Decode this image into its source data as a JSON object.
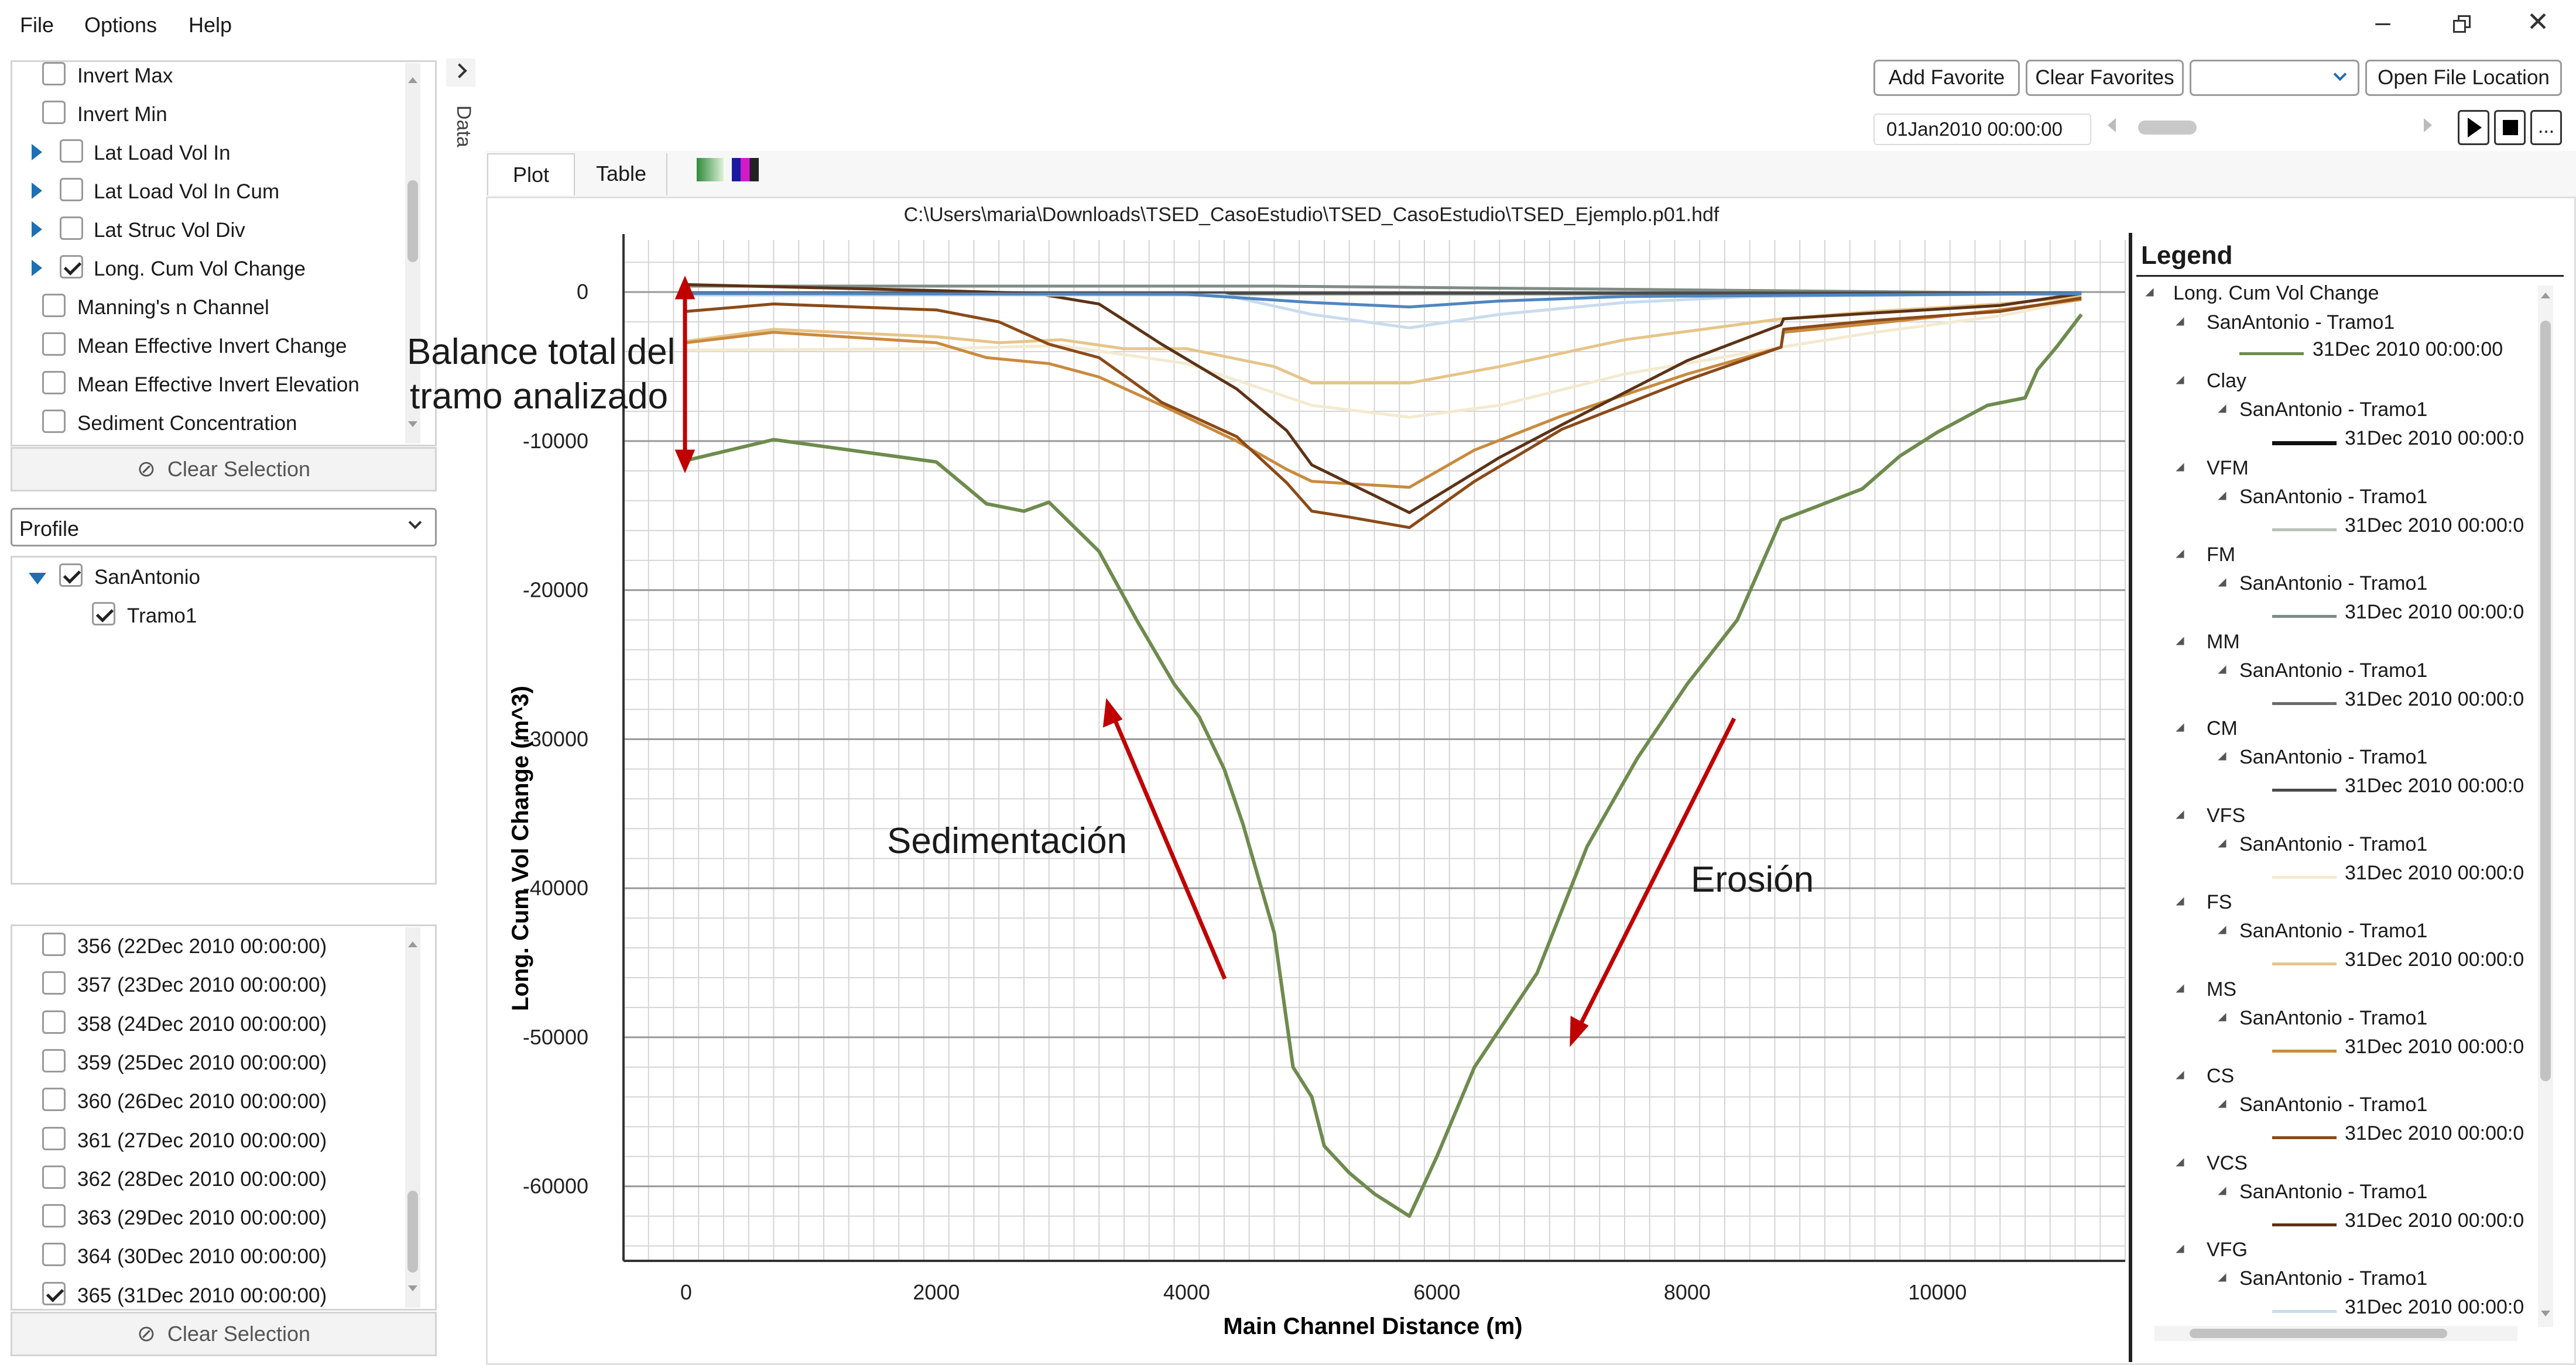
{
  "menu": {
    "file": "File",
    "options": "Options",
    "help": "Help"
  },
  "side_tab": "Data",
  "variables": [
    {
      "label": "Invert Max",
      "checked": false,
      "expander": false
    },
    {
      "label": "Invert Min",
      "checked": false,
      "expander": false
    },
    {
      "label": "Lat Load Vol In",
      "checked": false,
      "expander": true
    },
    {
      "label": "Lat Load Vol In Cum",
      "checked": false,
      "expander": true
    },
    {
      "label": "Lat Struc Vol Div",
      "checked": false,
      "expander": true
    },
    {
      "label": "Long. Cum Vol Change",
      "checked": true,
      "expander": true
    },
    {
      "label": "Manning's n Channel",
      "checked": false,
      "expander": false
    },
    {
      "label": "Mean Effective Invert Change",
      "checked": false,
      "expander": false
    },
    {
      "label": "Mean Effective Invert Elevation",
      "checked": false,
      "expander": false
    },
    {
      "label": "Sediment Concentration",
      "checked": false,
      "expander": false
    }
  ],
  "clear_selection": "Clear Selection",
  "profile_select": "Profile",
  "tree": {
    "river": "SanAntonio",
    "reach": "Tramo1"
  },
  "times": [
    {
      "label": "356 (22Dec 2010 00:00:00)",
      "checked": false
    },
    {
      "label": "357 (23Dec 2010 00:00:00)",
      "checked": false
    },
    {
      "label": "358 (24Dec 2010 00:00:00)",
      "checked": false
    },
    {
      "label": "359 (25Dec 2010 00:00:00)",
      "checked": false
    },
    {
      "label": "360 (26Dec 2010 00:00:00)",
      "checked": false
    },
    {
      "label": "361 (27Dec 2010 00:00:00)",
      "checked": false
    },
    {
      "label": "362 (28Dec 2010 00:00:00)",
      "checked": false
    },
    {
      "label": "363 (29Dec 2010 00:00:00)",
      "checked": false
    },
    {
      "label": "364 (30Dec 2010 00:00:00)",
      "checked": false
    },
    {
      "label": "365 (31Dec 2010 00:00:00)",
      "checked": true
    }
  ],
  "toolbar": {
    "add_favorite": "Add Favorite",
    "clear_favorites": "Clear Favorites",
    "open_file_location": "Open File Location",
    "time": "01Jan2010 00:00:00",
    "more": "..."
  },
  "tabs": {
    "plot": "Plot",
    "table": "Table"
  },
  "file_path": "C:\\Users\\maria\\Downloads\\TSED_CasoEstudio\\TSED_CasoEstudio\\TSED_Ejemplo.p01.hdf",
  "annotations": {
    "balance1": "Balance total del",
    "balance2": "tramo analizado",
    "sedimentacion": "Sedimentación",
    "erosion": "Erosión"
  },
  "legend": {
    "title": "Legend",
    "root": "Long. Cum Vol Change",
    "groups": [
      {
        "name": "SanAntonio - Tramo1",
        "date": "31Dec 2010 00:00:00",
        "color": "#6e8b4e",
        "top": true
      },
      {
        "name": "Clay",
        "sub": "SanAntonio - Tramo1",
        "date": "31Dec 2010 00:00:0",
        "color": "#111111"
      },
      {
        "name": "VFM",
        "sub": "SanAntonio - Tramo1",
        "date": "31Dec 2010 00:00:0",
        "color": "#b8c0ba"
      },
      {
        "name": "FM",
        "sub": "SanAntonio - Tramo1",
        "date": "31Dec 2010 00:00:0",
        "color": "#7f8c86"
      },
      {
        "name": "MM",
        "sub": "SanAntonio - Tramo1",
        "date": "31Dec 2010 00:00:0",
        "color": "#6b6b6b"
      },
      {
        "name": "CM",
        "sub": "SanAntonio - Tramo1",
        "date": "31Dec 2010 00:00:0",
        "color": "#4a4a4a"
      },
      {
        "name": "VFS",
        "sub": "SanAntonio - Tramo1",
        "date": "31Dec 2010 00:00:0",
        "color": "#f3ead0"
      },
      {
        "name": "FS",
        "sub": "SanAntonio - Tramo1",
        "date": "31Dec 2010 00:00:0",
        "color": "#e6c58a"
      },
      {
        "name": "MS",
        "sub": "SanAntonio - Tramo1",
        "date": "31Dec 2010 00:00:0",
        "color": "#c98a3e"
      },
      {
        "name": "CS",
        "sub": "SanAntonio - Tramo1",
        "date": "31Dec 2010 00:00:0",
        "color": "#8b4a18"
      },
      {
        "name": "VCS",
        "sub": "SanAntonio - Tramo1",
        "date": "31Dec 2010 00:00:0",
        "color": "#5c3216"
      },
      {
        "name": "VFG",
        "sub": "SanAntonio - Tramo1",
        "date": "31Dec 2010 00:00:0",
        "color": "#c9dced"
      }
    ]
  },
  "chart_data": {
    "type": "line",
    "xlabel": "Main Channel Distance (m)",
    "ylabel": "Long. Cum Vol Change (m^3)",
    "xlim": [
      -500,
      11500
    ],
    "ylim": [
      -65000,
      3500
    ],
    "xticks": [
      0,
      2000,
      4000,
      6000,
      8000,
      10000
    ],
    "yticks": [
      0,
      -10000,
      -20000,
      -30000,
      -40000,
      -50000,
      -60000
    ],
    "grid": true,
    "series": [
      {
        "color": "#6e8b4e",
        "x": [
          0,
          700,
          2000,
          2400,
          2700,
          2900,
          3300,
          3600,
          3900,
          4100,
          4300,
          4450,
          4700,
          4850,
          5000,
          5100,
          5300,
          5500,
          5780,
          6000,
          6300,
          6800,
          7200,
          7600,
          8000,
          8400,
          8750,
          9000,
          9400,
          9700,
          10000,
          10400,
          10700,
          10800,
          10950,
          11150
        ],
        "y": [
          -11300,
          -9900,
          -11400,
          -14200,
          -14700,
          -14100,
          -17400,
          -22000,
          -26300,
          -28500,
          -32000,
          -35700,
          -43000,
          -52000,
          -54000,
          -57300,
          -59100,
          -60500,
          -62000,
          -58000,
          -52000,
          -45700,
          -37200,
          -31300,
          -26300,
          -22000,
          -15300,
          -14500,
          -13200,
          -11000,
          -9400,
          -7600,
          -7100,
          -5200,
          -3700,
          -1500
        ]
      },
      {
        "color": "#111111",
        "x": [
          0,
          11150
        ],
        "y": [
          -100,
          -100
        ]
      },
      {
        "color": "#b8c0ba",
        "x": [
          0,
          11150
        ],
        "y": [
          -150,
          -150
        ]
      },
      {
        "color": "#7f8c86",
        "x": [
          0,
          4700,
          11150
        ],
        "y": [
          400,
          400,
          -100
        ]
      },
      {
        "color": "#6b6b6b",
        "x": [
          0,
          11150
        ],
        "y": [
          -50,
          -50
        ]
      },
      {
        "color": "#4a4a4a",
        "x": [
          0,
          11150
        ],
        "y": [
          -80,
          -80
        ]
      },
      {
        "color": "#f3ead0",
        "x": [
          0,
          2000,
          3000,
          4000,
          5000,
          5780,
          6500,
          7500,
          8750,
          9500,
          10500,
          11150
        ],
        "y": [
          -3900,
          -3800,
          -3600,
          -4800,
          -7600,
          -8400,
          -7600,
          -5500,
          -3700,
          -2700,
          -1600,
          -500
        ]
      },
      {
        "color": "#e6c58a",
        "x": [
          0,
          700,
          2000,
          2500,
          3000,
          3500,
          4000,
          4700,
          5000,
          5780,
          6500,
          7500,
          8750,
          9500,
          10500,
          11150
        ],
        "y": [
          -3300,
          -2500,
          -3000,
          -3400,
          -3200,
          -3800,
          -3800,
          -5000,
          -6100,
          -6100,
          -5000,
          -3200,
          -1800,
          -1300,
          -800,
          -300
        ]
      },
      {
        "color": "#c98a3e",
        "x": [
          0,
          700,
          2000,
          2400,
          2900,
          3300,
          3800,
          4400,
          4800,
          5000,
          5780,
          6300,
          7000,
          8000,
          8750,
          8770,
          9500,
          10500,
          11150
        ],
        "y": [
          -3400,
          -2700,
          -3400,
          -4400,
          -4800,
          -5700,
          -7600,
          -10000,
          -11900,
          -12700,
          -13100,
          -10600,
          -8300,
          -5500,
          -3700,
          -2700,
          -2100,
          -1200,
          -500
        ]
      },
      {
        "color": "#8b4a18",
        "x": [
          0,
          700,
          2000,
          2500,
          2900,
          3300,
          3800,
          4400,
          4800,
          5000,
          5300,
          5780,
          6300,
          7000,
          8000,
          8750,
          8770,
          9500,
          10500,
          11150
        ],
        "y": [
          -1300,
          -800,
          -1200,
          -2000,
          -3500,
          -4400,
          -7400,
          -9700,
          -12800,
          -14700,
          -15100,
          -15800,
          -12700,
          -9200,
          -5900,
          -3700,
          -2500,
          -1900,
          -1300,
          -400
        ]
      },
      {
        "color": "#5c3216",
        "x": [
          0,
          2000,
          2800,
          3300,
          3800,
          4400,
          4800,
          5000,
          5780,
          6500,
          7000,
          8000,
          8750,
          8770,
          9500,
          10500,
          11150
        ],
        "y": [
          500,
          100,
          -100,
          -800,
          -3500,
          -6500,
          -9300,
          -11600,
          -14800,
          -11100,
          -8900,
          -4600,
          -2200,
          -1800,
          -1400,
          -900,
          -100
        ]
      },
      {
        "color": "#c9dced",
        "x": [
          0,
          4300,
          5000,
          5780,
          6500,
          7500,
          8500,
          11150
        ],
        "y": [
          -200,
          -200,
          -1500,
          -2400,
          -1500,
          -700,
          -300,
          -100
        ]
      },
      {
        "color": "#4f86c0",
        "x": [
          0,
          4000,
          5000,
          5780,
          6500,
          7500,
          11150
        ],
        "y": [
          -100,
          -150,
          -700,
          -1000,
          -600,
          -300,
          -100
        ]
      }
    ]
  }
}
